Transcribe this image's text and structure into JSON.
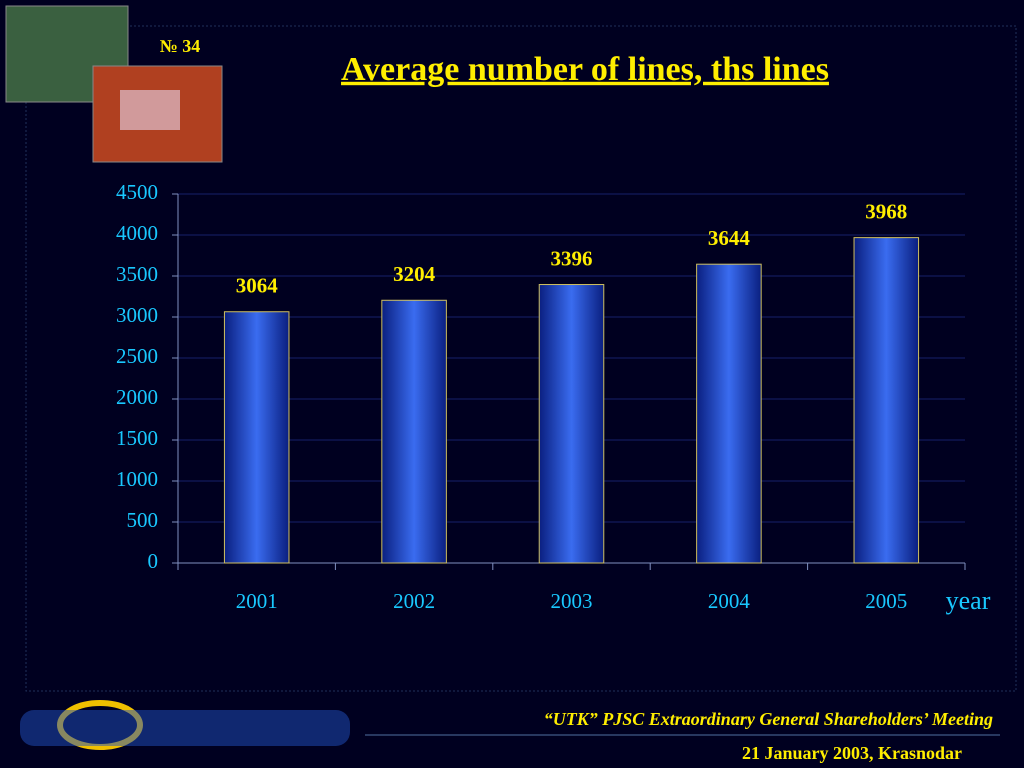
{
  "slide": {
    "number": "№ 34",
    "footer_title": "“UTK” PJSC Extraordinary General Shareholders’ Meeting",
    "footer_date": "21 January 2003, Krasnodar"
  },
  "chart_data": {
    "type": "bar",
    "title": "Average number of lines, ths lines",
    "categories": [
      "2001",
      "2002",
      "2003",
      "2004",
      "2005"
    ],
    "values": [
      3064,
      3204,
      3396,
      3644,
      3968
    ],
    "x_label": "year",
    "color": "#1f4fd0",
    "ylim": [
      0,
      4500
    ],
    "yticks": [
      0,
      500,
      1000,
      1500,
      2000,
      2500,
      3000,
      3500,
      4000,
      4500
    ],
    "grid": true
  }
}
